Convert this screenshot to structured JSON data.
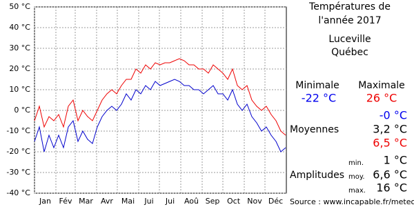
{
  "chart_data": {
    "type": "line",
    "x": [
      1,
      8,
      15,
      22,
      29,
      36,
      43,
      50,
      57,
      64,
      71,
      78,
      85,
      92,
      99,
      106,
      113,
      120,
      127,
      134,
      141,
      148,
      155,
      162,
      169,
      176,
      183,
      190,
      197,
      204,
      211,
      218,
      225,
      232,
      239,
      246,
      253,
      260,
      267,
      274,
      281,
      288,
      295,
      302,
      309,
      316,
      323,
      330,
      337,
      344,
      351,
      358,
      365
    ],
    "series": [
      {
        "name": "Maximale",
        "color": "#ee0000",
        "values": [
          -5,
          2,
          -8,
          -3,
          -5,
          -2,
          -8,
          2,
          5,
          -5,
          0,
          -3,
          -5,
          0,
          5,
          8,
          10,
          8,
          12,
          15,
          15,
          20,
          18,
          22,
          20,
          23,
          22,
          23,
          23,
          24,
          25,
          24,
          22,
          22,
          20,
          20,
          18,
          22,
          20,
          18,
          15,
          20,
          12,
          10,
          12,
          5,
          2,
          0,
          2,
          -2,
          -5,
          -10,
          -12
        ]
      },
      {
        "name": "Minimale",
        "color": "#0000cc",
        "values": [
          -15,
          -8,
          -20,
          -12,
          -18,
          -12,
          -18,
          -8,
          -5,
          -15,
          -10,
          -14,
          -16,
          -8,
          -3,
          0,
          2,
          0,
          3,
          8,
          5,
          10,
          8,
          12,
          10,
          14,
          12,
          13,
          14,
          15,
          14,
          12,
          12,
          10,
          10,
          8,
          10,
          12,
          8,
          8,
          5,
          10,
          3,
          0,
          3,
          -3,
          -6,
          -10,
          -8,
          -12,
          -15,
          -20,
          -18
        ]
      }
    ],
    "xlim": [
      1,
      366
    ],
    "xticks": [
      {
        "value": 1,
        "label": "Jan"
      },
      {
        "value": 32,
        "label": "Fév"
      },
      {
        "value": 60,
        "label": "Mar"
      },
      {
        "value": 91,
        "label": "Avr"
      },
      {
        "value": 121,
        "label": "Mai"
      },
      {
        "value": 152,
        "label": "Jui"
      },
      {
        "value": 182,
        "label": "Jui"
      },
      {
        "value": 213,
        "label": "Aoû"
      },
      {
        "value": 244,
        "label": "Sep"
      },
      {
        "value": 274,
        "label": "Oct"
      },
      {
        "value": 305,
        "label": "Nov"
      },
      {
        "value": 335,
        "label": "Déc"
      }
    ],
    "ylim": [
      -40,
      50
    ],
    "yticks": [
      {
        "value": -40,
        "label": "-40 °C"
      },
      {
        "value": -30,
        "label": "-30 °C"
      },
      {
        "value": -20,
        "label": "-20 °C"
      },
      {
        "value": -10,
        "label": "-10 °C"
      },
      {
        "value": 0,
        "label": "0 °C"
      },
      {
        "value": 10,
        "label": "10 °C"
      },
      {
        "value": 20,
        "label": "20 °C"
      },
      {
        "value": 30,
        "label": "30 °C"
      },
      {
        "value": 40,
        "label": "40 °C"
      },
      {
        "value": 50,
        "label": "50 °C"
      }
    ],
    "grid": true
  },
  "panel": {
    "title_line1": "Températures de",
    "title_line2": "l'année 2017",
    "city": "Luceville",
    "region": "Québec",
    "min_label": "Minimale",
    "max_label": "Maximale",
    "min_value": "-22 °C",
    "max_value": "26 °C",
    "means_label": "Moyennes",
    "mean_min": "-0 °C",
    "mean_avg": "3,2 °C",
    "mean_max": "6,5 °C",
    "amplitudes_label": "Amplitudes",
    "amp_min_label": "min.",
    "amp_min": "1 °C",
    "amp_avg_label": "moy.",
    "amp_avg": "6,6 °C",
    "amp_max_label": "max.",
    "amp_max": "16 °C",
    "source": "Source : www.incapable.fr/meteo"
  }
}
